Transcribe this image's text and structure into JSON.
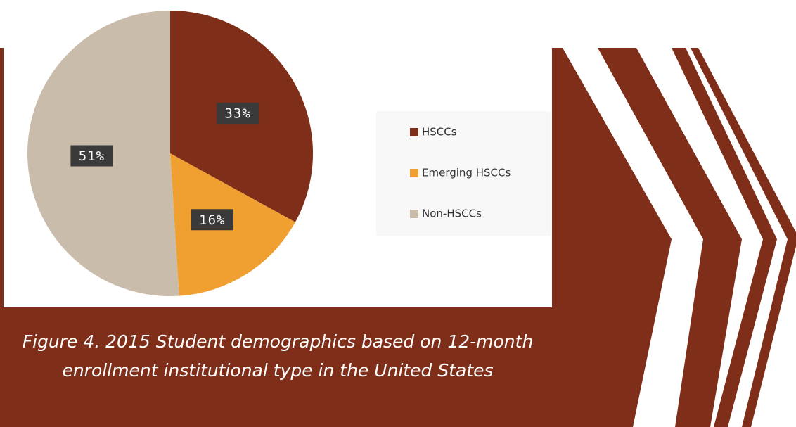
{
  "chart_data": {
    "type": "pie",
    "title": [
      "Figure 4. 2015 Student demographics based on 12-month",
      "enrollment institutional type in the United States"
    ],
    "categories": [
      "HSCCs",
      "Emerging HSCCs",
      "Non-HSCCs"
    ],
    "values": [
      33,
      16,
      51
    ],
    "value_labels": [
      "33%",
      "16%",
      "51%"
    ],
    "colors": [
      "#7f2e19",
      "#f0a030",
      "#c9bcaa"
    ],
    "legend": "right"
  }
}
